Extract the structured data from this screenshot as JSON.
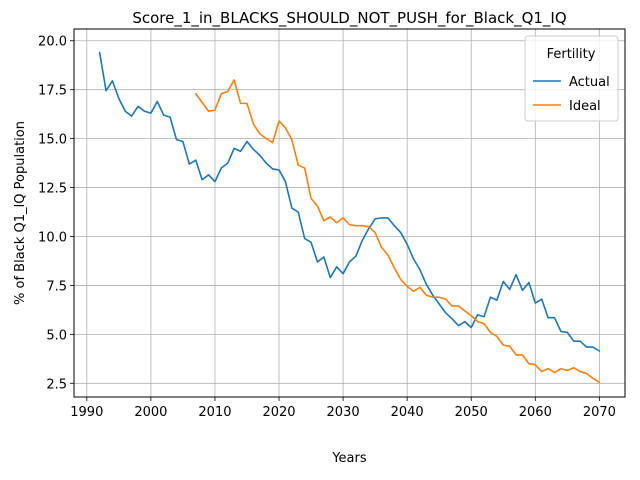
{
  "chart_data": {
    "type": "line",
    "title": "Score_1_in_BLACKS_SHOULD_NOT_PUSH_for_Black_Q1_IQ",
    "xlabel": "Years",
    "ylabel": "% of Black Q1_IQ Population",
    "xlim": [
      1988,
      2074
    ],
    "ylim": [
      1.8,
      20.6
    ],
    "xticks": [
      1990,
      2000,
      2010,
      2020,
      2030,
      2040,
      2050,
      2060,
      2070
    ],
    "yticks": [
      2.5,
      5.0,
      7.5,
      10.0,
      12.5,
      15.0,
      17.5,
      20.0
    ],
    "ytick_labels": [
      "2.5",
      "5.0",
      "7.5",
      "10.0",
      "12.5",
      "15.0",
      "17.5",
      "20.0"
    ],
    "grid": true,
    "legend": {
      "title": "Fertility",
      "placement": "top-right"
    },
    "series": [
      {
        "name": "Actual",
        "color": "#1f77b4",
        "x": [
          1992,
          1993,
          1994,
          1995,
          1996,
          1997,
          1998,
          1999,
          2000,
          2001,
          2002,
          2003,
          2004,
          2005,
          2006,
          2007,
          2008,
          2009,
          2010,
          2011,
          2012,
          2013,
          2014,
          2015,
          2016,
          2017,
          2018,
          2019,
          2020,
          2021,
          2022,
          2023,
          2024,
          2025,
          2026,
          2027,
          2028,
          2029,
          2030,
          2031,
          2032,
          2033,
          2034,
          2035,
          2036,
          2037,
          2038,
          2039,
          2040,
          2041,
          2042,
          2043,
          2044,
          2045,
          2046,
          2047,
          2048,
          2049,
          2050,
          2051,
          2052,
          2053,
          2054,
          2055,
          2056,
          2057,
          2058,
          2059,
          2060,
          2061,
          2062,
          2063,
          2064,
          2065,
          2066,
          2067,
          2068,
          2069,
          2070
        ],
        "values": [
          19.4,
          17.45,
          17.95,
          17.05,
          16.4,
          16.15,
          16.65,
          16.4,
          16.3,
          16.9,
          16.2,
          16.1,
          14.95,
          14.85,
          13.7,
          13.9,
          12.9,
          13.15,
          12.8,
          13.5,
          13.75,
          14.5,
          14.35,
          14.85,
          14.45,
          14.15,
          13.75,
          13.45,
          13.4,
          12.8,
          11.45,
          11.25,
          9.9,
          9.7,
          8.7,
          8.95,
          7.9,
          8.45,
          8.1,
          8.7,
          9.0,
          9.8,
          10.4,
          10.9,
          10.95,
          10.95,
          10.55,
          10.2,
          9.6,
          8.85,
          8.3,
          7.55,
          7.0,
          6.55,
          6.1,
          5.8,
          5.45,
          5.65,
          5.35,
          6.0,
          5.9,
          6.9,
          6.75,
          7.7,
          7.3,
          8.05,
          7.25,
          7.65,
          6.6,
          6.8,
          5.85,
          5.85,
          5.15,
          5.1,
          4.65,
          4.65,
          4.35,
          4.35,
          4.15
        ]
      },
      {
        "name": "Ideal",
        "color": "#ff7f0e",
        "x": [
          2007,
          2008,
          2009,
          2010,
          2011,
          2012,
          2013,
          2014,
          2015,
          2016,
          2017,
          2018,
          2019,
          2020,
          2021,
          2022,
          2023,
          2024,
          2025,
          2026,
          2027,
          2028,
          2029,
          2030,
          2031,
          2032,
          2033,
          2034,
          2035,
          2036,
          2037,
          2038,
          2039,
          2040,
          2041,
          2042,
          2043,
          2044,
          2045,
          2046,
          2047,
          2048,
          2049,
          2050,
          2051,
          2052,
          2053,
          2054,
          2055,
          2056,
          2057,
          2058,
          2059,
          2060,
          2061,
          2062,
          2063,
          2064,
          2065,
          2066,
          2067,
          2068,
          2069,
          2070
        ],
        "values": [
          17.3,
          16.85,
          16.4,
          16.45,
          17.3,
          17.4,
          18.0,
          16.8,
          16.8,
          15.75,
          15.25,
          15.0,
          14.8,
          15.9,
          15.55,
          14.95,
          13.65,
          13.5,
          11.95,
          11.55,
          10.8,
          11.0,
          10.7,
          10.95,
          10.6,
          10.55,
          10.55,
          10.5,
          10.2,
          9.45,
          9.05,
          8.4,
          7.8,
          7.45,
          7.2,
          7.4,
          7.0,
          6.9,
          6.9,
          6.8,
          6.45,
          6.45,
          6.2,
          5.95,
          5.65,
          5.55,
          5.1,
          4.9,
          4.45,
          4.4,
          3.95,
          3.95,
          3.5,
          3.45,
          3.1,
          3.25,
          3.05,
          3.25,
          3.15,
          3.3,
          3.1,
          3.0,
          2.75,
          2.55
        ]
      }
    ]
  }
}
